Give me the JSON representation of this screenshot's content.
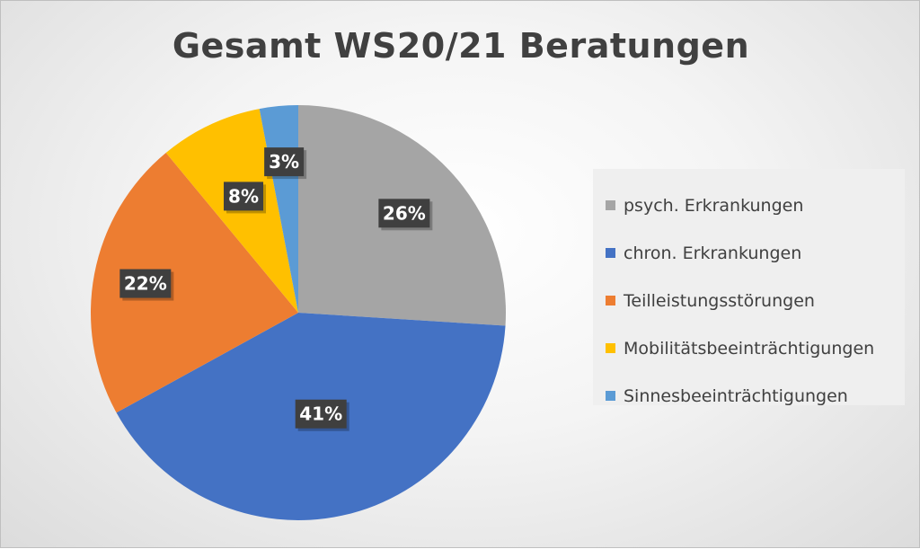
{
  "chart_data": {
    "type": "pie",
    "title": "Gesamt WS20/21 Beratungen",
    "categories": [
      "psych. Erkrankungen",
      "chron. Erkrankungen",
      "Teilleistungsstörungen",
      "Mobilitätsbeeinträchtigungen",
      "Sinnesbeeinträchtigungen"
    ],
    "values": [
      26,
      41,
      22,
      8,
      3
    ],
    "labels": [
      "26%",
      "41%",
      "22%",
      "8%",
      "3%"
    ],
    "colors": [
      "#a5a5a5",
      "#4472c4",
      "#ed7d31",
      "#ffc000",
      "#5b9bd5"
    ],
    "legend_position": "right"
  }
}
